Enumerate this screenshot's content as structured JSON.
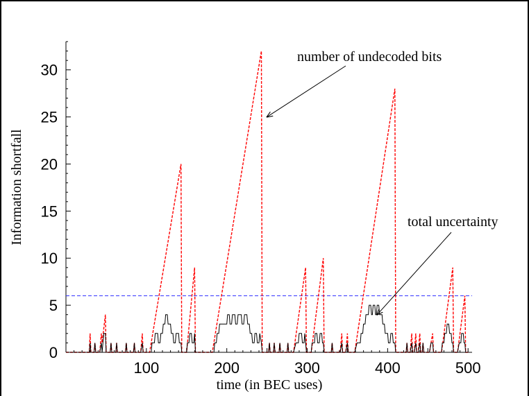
{
  "chart_data": {
    "type": "line",
    "title": "",
    "xlabel": "time (in BEC uses)",
    "ylabel": "Information shortfall",
    "xlim": [
      0,
      505
    ],
    "ylim": [
      0,
      33
    ],
    "x_ticks": [
      100,
      200,
      300,
      400,
      500
    ],
    "y_ticks": [
      0,
      5,
      10,
      15,
      20,
      25,
      30
    ],
    "grid": false,
    "threshold": {
      "y": 6,
      "color": "#3333ff",
      "style": "dashed"
    },
    "annotations": [
      {
        "text": "number of undecoded bits",
        "arrow_to": [
          250,
          25
        ]
      },
      {
        "text": "total uncertainty",
        "arrow_to": [
          387,
          4
        ]
      }
    ],
    "series": [
      {
        "color": "#ff0000",
        "style": "dashed",
        "points": [
          [
            0,
            0
          ],
          [
            29,
            0
          ],
          [
            30,
            2
          ],
          [
            31,
            0
          ],
          [
            35,
            0
          ],
          [
            36,
            1
          ],
          [
            37,
            0
          ],
          [
            42,
            0
          ],
          [
            44,
            2
          ],
          [
            45,
            1
          ],
          [
            49,
            4
          ],
          [
            50,
            0
          ],
          [
            55,
            0
          ],
          [
            56,
            1
          ],
          [
            57,
            0
          ],
          [
            62,
            0
          ],
          [
            63,
            1
          ],
          [
            64,
            0
          ],
          [
            74,
            0
          ],
          [
            75,
            1
          ],
          [
            76,
            0
          ],
          [
            84,
            0
          ],
          [
            85,
            1
          ],
          [
            86,
            0
          ],
          [
            93,
            0
          ],
          [
            95,
            2
          ],
          [
            96,
            0
          ],
          [
            104,
            0
          ],
          [
            143,
            20
          ],
          [
            144,
            0
          ],
          [
            150,
            0
          ],
          [
            160,
            9
          ],
          [
            161,
            0
          ],
          [
            182,
            0
          ],
          [
            243,
            32
          ],
          [
            244,
            0
          ],
          [
            252,
            0
          ],
          [
            253,
            1
          ],
          [
            254,
            0
          ],
          [
            258,
            0
          ],
          [
            259,
            1
          ],
          [
            260,
            0
          ],
          [
            265,
            0
          ],
          [
            266,
            1
          ],
          [
            267,
            0
          ],
          [
            275,
            0
          ],
          [
            276,
            1
          ],
          [
            277,
            0
          ],
          [
            283,
            0
          ],
          [
            298,
            9
          ],
          [
            299,
            0
          ],
          [
            305,
            0
          ],
          [
            320,
            10
          ],
          [
            321,
            0
          ],
          [
            330,
            0
          ],
          [
            331,
            1
          ],
          [
            332,
            0
          ],
          [
            341,
            0
          ],
          [
            343,
            2
          ],
          [
            344,
            0
          ],
          [
            348,
            0
          ],
          [
            350,
            2
          ],
          [
            351,
            0
          ],
          [
            359,
            0
          ],
          [
            409,
            28
          ],
          [
            410,
            0
          ],
          [
            423,
            0
          ],
          [
            424,
            1
          ],
          [
            425,
            0
          ],
          [
            428,
            0
          ],
          [
            430,
            2
          ],
          [
            431,
            0
          ],
          [
            433,
            0
          ],
          [
            435,
            2
          ],
          [
            436,
            0
          ],
          [
            438,
            0
          ],
          [
            440,
            2
          ],
          [
            441,
            0
          ],
          [
            443,
            0
          ],
          [
            444,
            1
          ],
          [
            445,
            0
          ],
          [
            452,
            0
          ],
          [
            456,
            2
          ],
          [
            457,
            0
          ],
          [
            467,
            0
          ],
          [
            481,
            9
          ],
          [
            482,
            0
          ],
          [
            487,
            0
          ],
          [
            496,
            6
          ],
          [
            497,
            0
          ],
          [
            500,
            0
          ]
        ]
      },
      {
        "color": "#000000",
        "style": "solid",
        "points": [
          [
            0,
            0
          ],
          [
            29,
            0
          ],
          [
            30,
            1
          ],
          [
            31,
            0
          ],
          [
            35,
            0
          ],
          [
            36,
            1
          ],
          [
            37,
            0
          ],
          [
            42,
            0
          ],
          [
            44,
            1
          ],
          [
            45,
            0
          ],
          [
            46,
            1
          ],
          [
            47,
            2
          ],
          [
            49,
            2
          ],
          [
            50,
            0
          ],
          [
            55,
            0
          ],
          [
            56,
            1
          ],
          [
            57,
            0
          ],
          [
            62,
            0
          ],
          [
            63,
            1
          ],
          [
            64,
            0
          ],
          [
            74,
            0
          ],
          [
            75,
            1
          ],
          [
            76,
            0
          ],
          [
            84,
            0
          ],
          [
            85,
            1
          ],
          [
            86,
            0
          ],
          [
            93,
            0
          ],
          [
            95,
            1
          ],
          [
            96,
            0
          ],
          [
            104,
            0
          ],
          [
            106,
            0
          ],
          [
            107,
            1
          ],
          [
            110,
            1
          ],
          [
            111,
            2
          ],
          [
            114,
            2
          ],
          [
            115,
            1
          ],
          [
            117,
            1
          ],
          [
            118,
            2
          ],
          [
            120,
            2
          ],
          [
            121,
            3
          ],
          [
            123,
            3
          ],
          [
            124,
            4
          ],
          [
            126,
            4
          ],
          [
            127,
            3
          ],
          [
            130,
            3
          ],
          [
            131,
            2
          ],
          [
            133,
            2
          ],
          [
            134,
            1
          ],
          [
            136,
            1
          ],
          [
            137,
            2
          ],
          [
            140,
            2
          ],
          [
            141,
            1
          ],
          [
            143,
            1
          ],
          [
            144,
            0
          ],
          [
            150,
            0
          ],
          [
            151,
            1
          ],
          [
            153,
            1
          ],
          [
            154,
            2
          ],
          [
            156,
            2
          ],
          [
            157,
            1
          ],
          [
            159,
            1
          ],
          [
            160,
            2
          ],
          [
            161,
            0
          ],
          [
            182,
            0
          ],
          [
            184,
            0
          ],
          [
            185,
            1
          ],
          [
            187,
            1
          ],
          [
            188,
            2
          ],
          [
            190,
            2
          ],
          [
            191,
            3
          ],
          [
            200,
            3
          ],
          [
            201,
            4
          ],
          [
            203,
            4
          ],
          [
            204,
            3
          ],
          [
            206,
            3
          ],
          [
            207,
            4
          ],
          [
            210,
            4
          ],
          [
            211,
            3
          ],
          [
            213,
            3
          ],
          [
            214,
            4
          ],
          [
            218,
            4
          ],
          [
            219,
            3
          ],
          [
            221,
            3
          ],
          [
            222,
            4
          ],
          [
            225,
            4
          ],
          [
            226,
            3
          ],
          [
            228,
            3
          ],
          [
            229,
            2
          ],
          [
            231,
            2
          ],
          [
            232,
            1
          ],
          [
            234,
            1
          ],
          [
            235,
            2
          ],
          [
            237,
            2
          ],
          [
            238,
            1
          ],
          [
            240,
            1
          ],
          [
            241,
            2
          ],
          [
            243,
            1
          ],
          [
            244,
            0
          ],
          [
            252,
            0
          ],
          [
            253,
            1
          ],
          [
            254,
            0
          ],
          [
            258,
            0
          ],
          [
            259,
            1
          ],
          [
            260,
            0
          ],
          [
            265,
            0
          ],
          [
            266,
            1
          ],
          [
            267,
            0
          ],
          [
            275,
            0
          ],
          [
            276,
            1
          ],
          [
            277,
            0
          ],
          [
            283,
            0
          ],
          [
            286,
            1
          ],
          [
            289,
            1
          ],
          [
            290,
            2
          ],
          [
            293,
            2
          ],
          [
            294,
            1
          ],
          [
            296,
            1
          ],
          [
            297,
            2
          ],
          [
            298,
            1
          ],
          [
            299,
            0
          ],
          [
            305,
            0
          ],
          [
            306,
            1
          ],
          [
            309,
            1
          ],
          [
            310,
            2
          ],
          [
            312,
            2
          ],
          [
            313,
            1
          ],
          [
            315,
            1
          ],
          [
            316,
            2
          ],
          [
            318,
            2
          ],
          [
            319,
            1
          ],
          [
            320,
            1
          ],
          [
            321,
            0
          ],
          [
            330,
            0
          ],
          [
            331,
            1
          ],
          [
            332,
            0
          ],
          [
            341,
            0
          ],
          [
            343,
            1
          ],
          [
            344,
            0
          ],
          [
            348,
            0
          ],
          [
            350,
            1
          ],
          [
            351,
            0
          ],
          [
            359,
            0
          ],
          [
            362,
            1
          ],
          [
            366,
            1
          ],
          [
            367,
            2
          ],
          [
            369,
            2
          ],
          [
            370,
            3
          ],
          [
            372,
            3
          ],
          [
            373,
            4
          ],
          [
            376,
            4
          ],
          [
            377,
            5
          ],
          [
            379,
            5
          ],
          [
            380,
            4
          ],
          [
            381,
            4
          ],
          [
            382,
            5
          ],
          [
            384,
            5
          ],
          [
            385,
            4
          ],
          [
            386,
            4
          ],
          [
            387,
            5
          ],
          [
            389,
            5
          ],
          [
            390,
            4
          ],
          [
            393,
            4
          ],
          [
            394,
            3
          ],
          [
            396,
            3
          ],
          [
            397,
            2
          ],
          [
            400,
            2
          ],
          [
            401,
            1
          ],
          [
            403,
            1
          ],
          [
            404,
            2
          ],
          [
            406,
            2
          ],
          [
            407,
            1
          ],
          [
            409,
            1
          ],
          [
            410,
            0
          ],
          [
            423,
            0
          ],
          [
            424,
            1
          ],
          [
            425,
            0
          ],
          [
            428,
            0
          ],
          [
            430,
            1
          ],
          [
            431,
            0
          ],
          [
            433,
            0
          ],
          [
            435,
            1
          ],
          [
            436,
            0
          ],
          [
            438,
            0
          ],
          [
            440,
            1
          ],
          [
            441,
            0
          ],
          [
            443,
            0
          ],
          [
            444,
            1
          ],
          [
            445,
            0
          ],
          [
            452,
            0
          ],
          [
            454,
            1
          ],
          [
            456,
            1
          ],
          [
            457,
            0
          ],
          [
            467,
            0
          ],
          [
            468,
            1
          ],
          [
            470,
            1
          ],
          [
            471,
            2
          ],
          [
            473,
            2
          ],
          [
            474,
            3
          ],
          [
            476,
            3
          ],
          [
            477,
            2
          ],
          [
            479,
            2
          ],
          [
            480,
            1
          ],
          [
            481,
            1
          ],
          [
            482,
            0
          ],
          [
            487,
            0
          ],
          [
            489,
            1
          ],
          [
            491,
            1
          ],
          [
            492,
            2
          ],
          [
            494,
            2
          ],
          [
            495,
            1
          ],
          [
            496,
            1
          ],
          [
            497,
            0
          ],
          [
            500,
            0
          ]
        ]
      }
    ]
  }
}
